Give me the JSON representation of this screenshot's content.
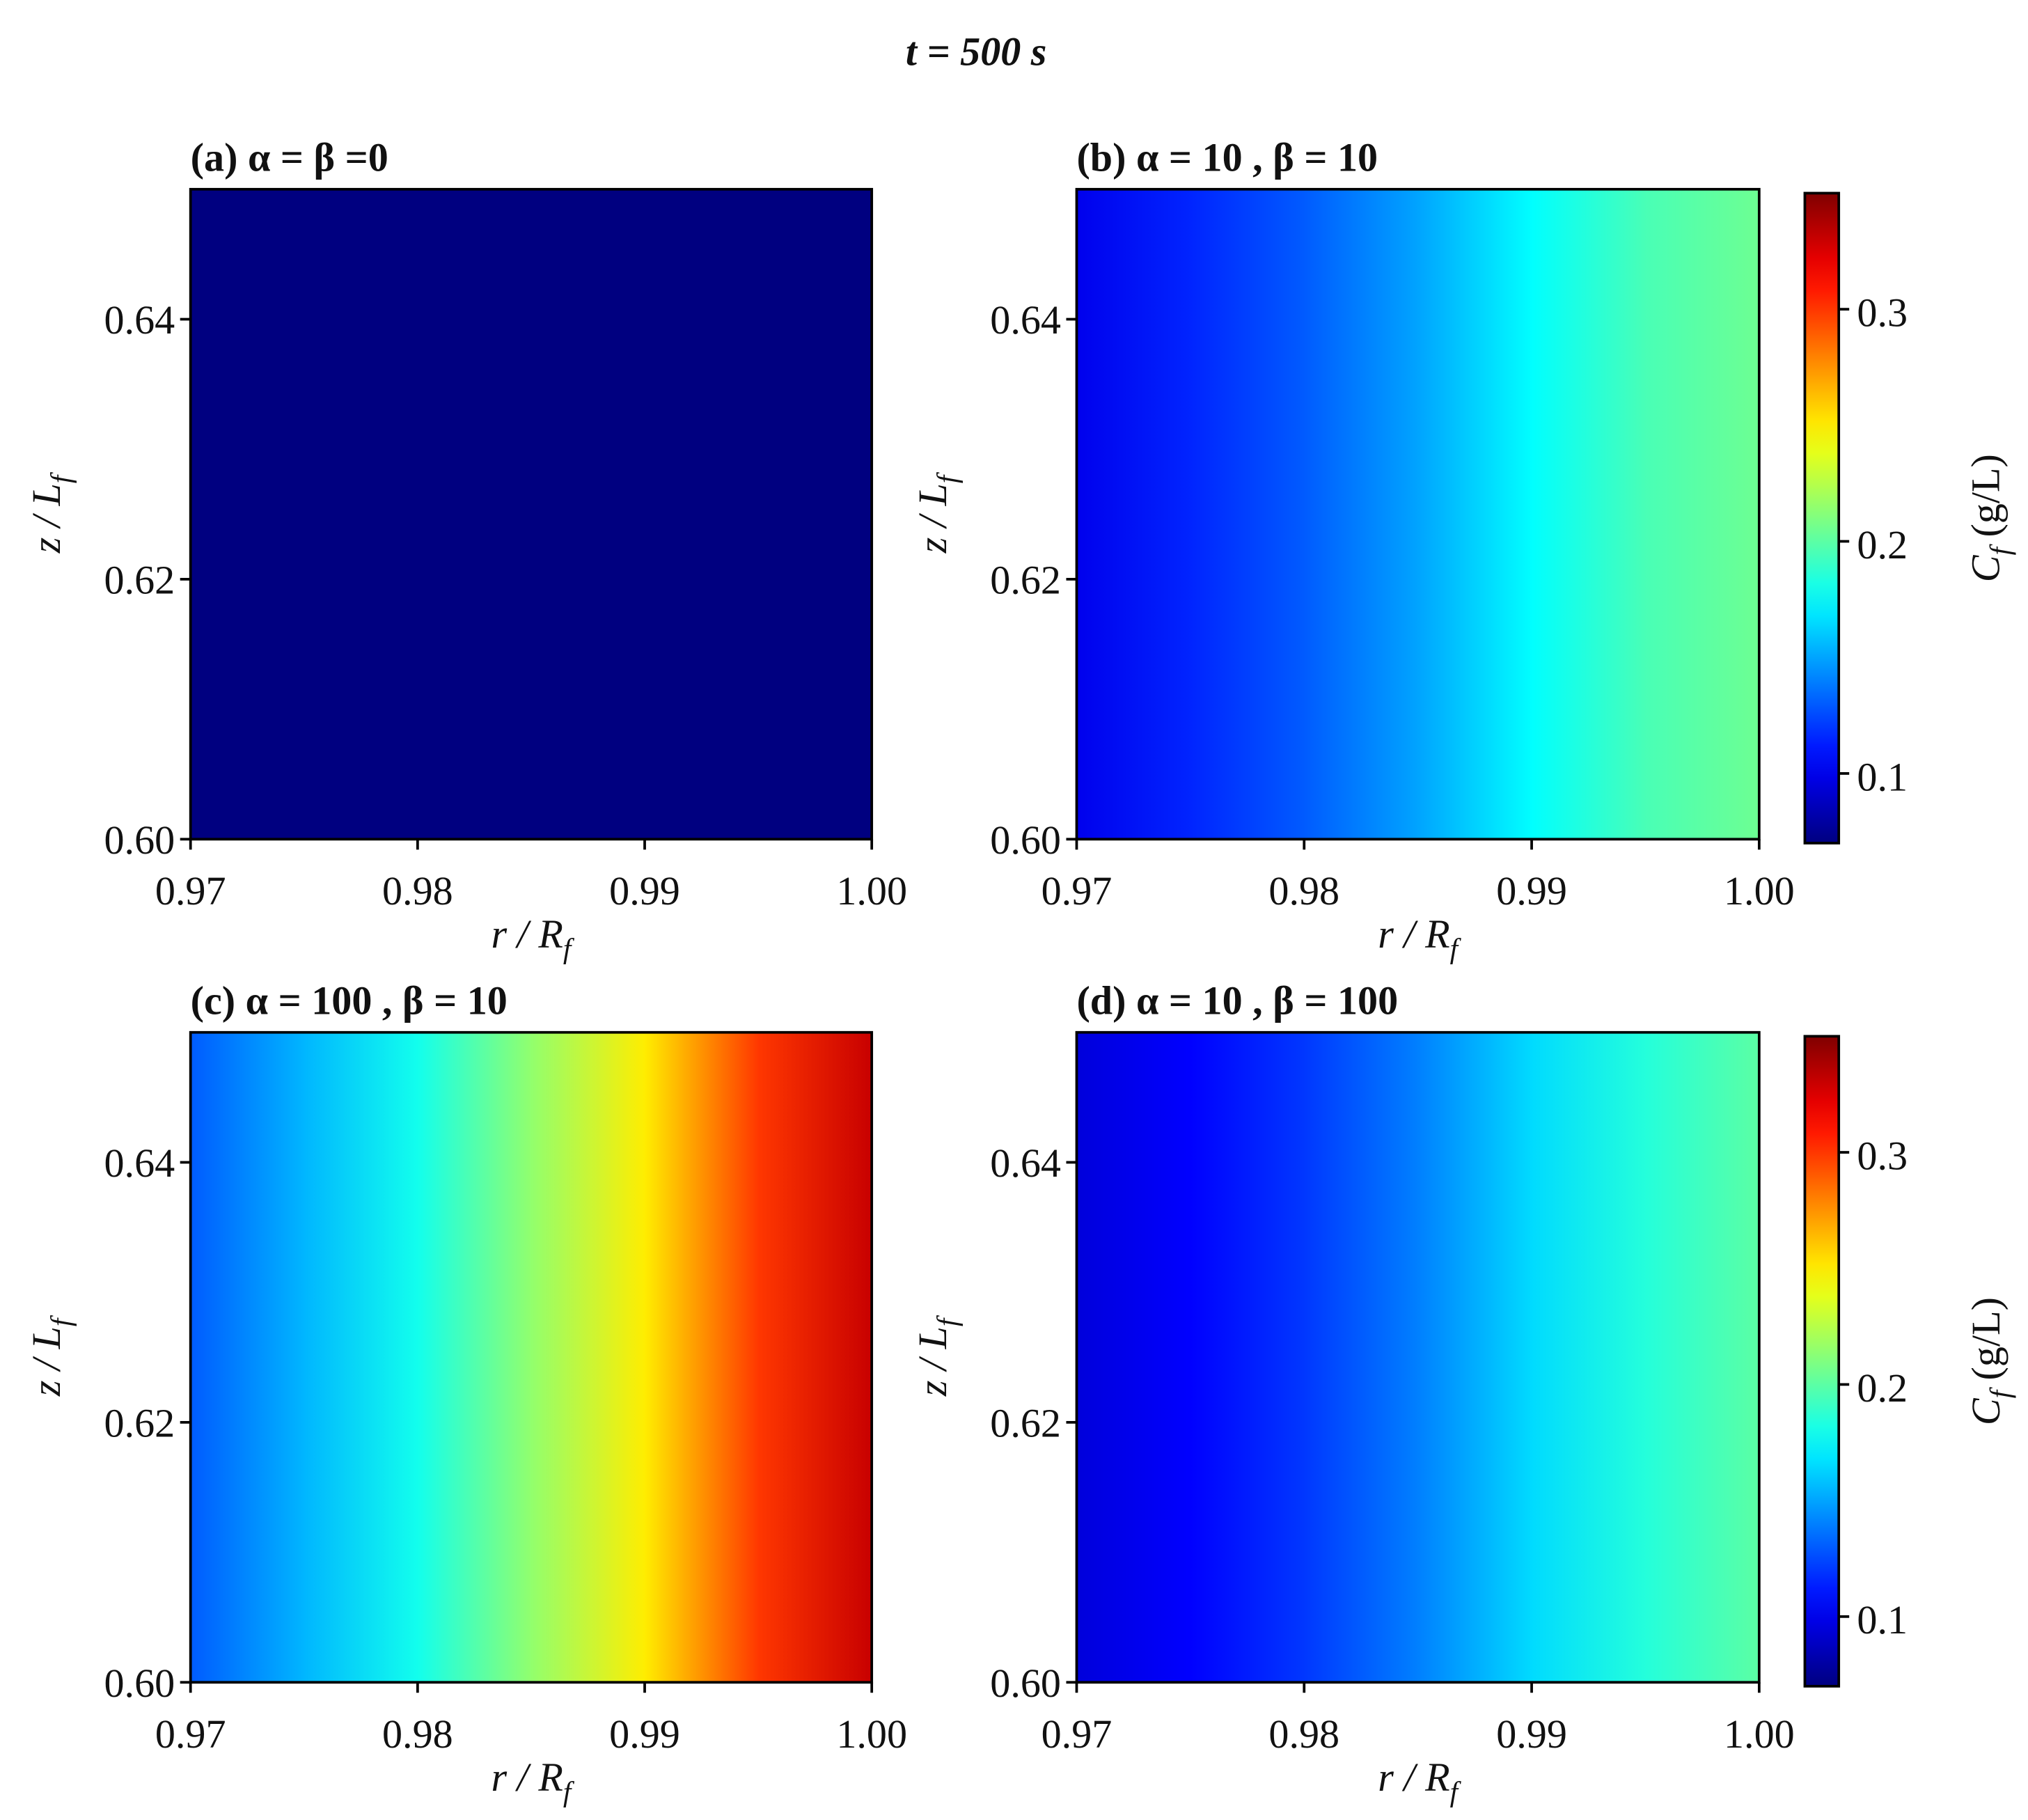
{
  "title": "t = 500 s",
  "chart_data": [
    {
      "type": "heatmap",
      "title": "(a) α = β =0",
      "xlabel": {
        "main": "r / R",
        "sub": "f"
      },
      "ylabel": {
        "main": "z / L",
        "sub": "f"
      },
      "x": [
        0.97,
        0.975,
        0.98,
        0.985,
        0.99,
        0.995,
        1.0
      ],
      "values": [
        0.07,
        0.07,
        0.07,
        0.07,
        0.07,
        0.07,
        0.07
      ],
      "xlim": [
        0.97,
        1.0
      ],
      "xticks": [
        0.97,
        0.98,
        0.99,
        {
          "value": 1.0,
          "label": "1.00"
        }
      ],
      "ylim": [
        0.6,
        0.65
      ],
      "yticks": [
        {
          "value": 0.6,
          "label": "0.60"
        },
        0.62,
        0.64
      ],
      "clim": [
        0.07,
        0.35
      ],
      "colormap": "jet"
    },
    {
      "type": "heatmap",
      "title": "(b) α = 10 ,  β = 10",
      "xlabel": {
        "main": "r / R",
        "sub": "f"
      },
      "ylabel": {
        "main": "z / L",
        "sub": "f"
      },
      "x": [
        0.97,
        0.975,
        0.98,
        0.985,
        0.99,
        0.995,
        1.0
      ],
      "values": [
        0.1,
        0.115,
        0.13,
        0.15,
        0.175,
        0.195,
        0.205
      ],
      "xlim": [
        0.97,
        1.0
      ],
      "xticks": [
        0.97,
        0.98,
        0.99,
        {
          "value": 1.0,
          "label": "1.00"
        }
      ],
      "ylim": [
        0.6,
        0.65
      ],
      "yticks": [
        {
          "value": 0.6,
          "label": "0.60"
        },
        0.62,
        0.64
      ],
      "clim": [
        0.07,
        0.35
      ],
      "colormap": "jet",
      "colorbar": {
        "label": {
          "main": "C",
          "sub": "f",
          "unit": " (g/L)"
        },
        "ticks": [
          0.1,
          0.2,
          0.3
        ]
      }
    },
    {
      "type": "heatmap",
      "title": "(c) α = 100 ,  β = 10",
      "xlabel": {
        "main": "r / R",
        "sub": "f"
      },
      "ylabel": {
        "main": "z / L",
        "sub": "f"
      },
      "x": [
        0.97,
        0.975,
        0.98,
        0.985,
        0.99,
        0.995,
        1.0
      ],
      "values": [
        0.13,
        0.155,
        0.18,
        0.215,
        0.25,
        0.3,
        0.33
      ],
      "xlim": [
        0.97,
        1.0
      ],
      "xticks": [
        0.97,
        0.98,
        0.99,
        {
          "value": 1.0,
          "label": "1.00"
        }
      ],
      "ylim": [
        0.6,
        0.65
      ],
      "yticks": [
        {
          "value": 0.6,
          "label": "0.60"
        },
        0.62,
        0.64
      ],
      "clim": [
        0.07,
        0.35
      ],
      "colormap": "jet"
    },
    {
      "type": "heatmap",
      "title": "(d) α = 10 ,  β = 100",
      "xlabel": {
        "main": "r / R",
        "sub": "f"
      },
      "ylabel": {
        "main": "z / L",
        "sub": "f"
      },
      "x": [
        0.97,
        0.975,
        0.98,
        0.985,
        0.99,
        0.995,
        1.0
      ],
      "values": [
        0.095,
        0.105,
        0.12,
        0.14,
        0.165,
        0.185,
        0.2
      ],
      "xlim": [
        0.97,
        1.0
      ],
      "xticks": [
        0.97,
        0.98,
        0.99,
        {
          "value": 1.0,
          "label": "1.00"
        }
      ],
      "ylim": [
        0.6,
        0.65
      ],
      "yticks": [
        {
          "value": 0.6,
          "label": "0.60"
        },
        0.62,
        0.64
      ],
      "clim": [
        0.07,
        0.35
      ],
      "colormap": "jet",
      "colorbar": {
        "label": {
          "main": "C",
          "sub": "f",
          "unit": " (g/L)"
        },
        "ticks": [
          0.1,
          0.2,
          0.3
        ]
      }
    }
  ]
}
